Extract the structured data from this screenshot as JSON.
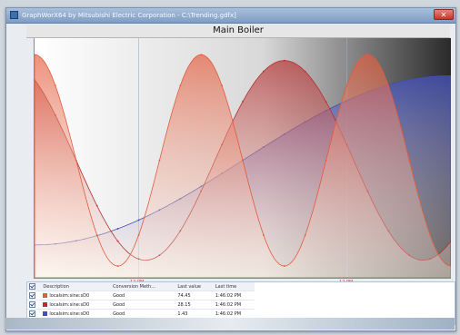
{
  "window": {
    "title": "GraphWorX64 by Mitsubishi Electric Corporation - C:\\Trending.gdfx]",
    "close_label": "✕"
  },
  "chart_data": {
    "type": "area",
    "title": "Main Boiler",
    "xlabel": "",
    "ylabel": "",
    "x_ticks": [
      "12 PM",
      "12 PM"
    ],
    "series": [
      {
        "name": "",
        "color": "#e35b3c",
        "amplitude": 0.9,
        "cycles": 2.5,
        "phase": 1.57
      },
      {
        "name": "",
        "color": "#b5302f",
        "amplitude": 0.85,
        "cycles": 1.5,
        "phase": 2.2
      },
      {
        "name": "",
        "color": "#4350b5",
        "amplitude": 0.72,
        "cycles": 0.5,
        "phase": -1.57
      }
    ],
    "grid": true,
    "legend_position": "bottom"
  },
  "legend": {
    "headers": [
      "Description",
      "Conversion Meth...",
      "Last value",
      "Last time"
    ],
    "rows": [
      {
        "color": "#e35b3c",
        "description": "localsim:sine:sD0",
        "conversion": "Good",
        "value": "74.45",
        "time": "1:46:02 PM"
      },
      {
        "color": "#b5302f",
        "description": "localsim:sine:sD0",
        "conversion": "Good",
        "value": "28.15",
        "time": "1:46:02 PM"
      },
      {
        "color": "#4350b5",
        "description": "localsim:sine:sD0",
        "conversion": "Good",
        "value": "1.43",
        "time": "1:46:02 PM"
      }
    ]
  }
}
